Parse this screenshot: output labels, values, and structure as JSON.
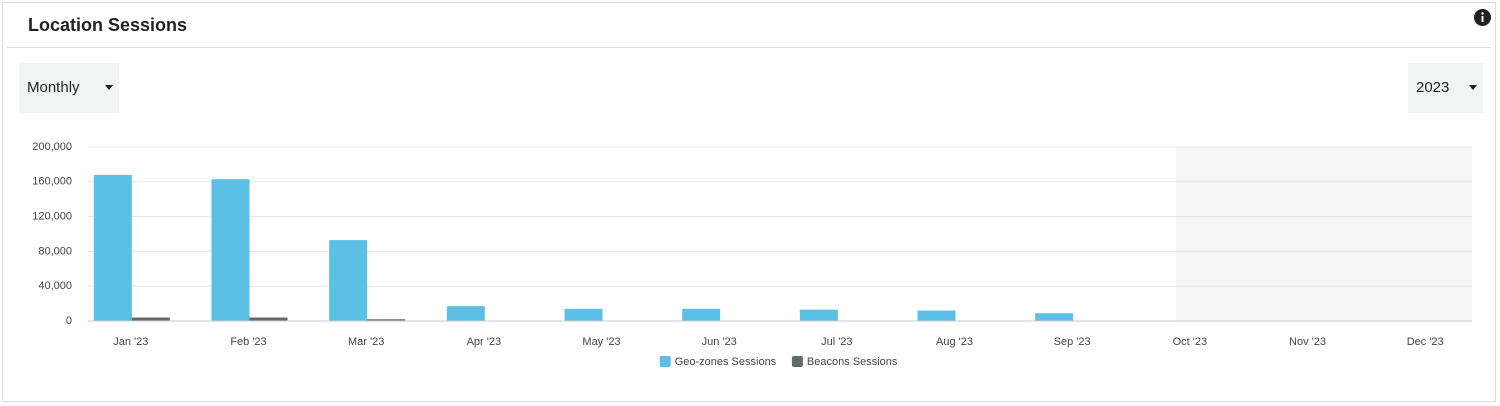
{
  "header": {
    "title": "Location Sessions"
  },
  "controls": {
    "period": "Monthly",
    "year": "2023"
  },
  "chart_data": {
    "type": "bar",
    "categories": [
      "Jan '23",
      "Feb '23",
      "Mar '23",
      "Apr '23",
      "May '23",
      "Jun '23",
      "Jul '23",
      "Aug '23",
      "Sep '23",
      "Oct '23",
      "Nov '23",
      "Dec '23"
    ],
    "series": [
      {
        "name": "Geo-zones Sessions",
        "color": "#5bbfe6",
        "values": [
          168000,
          163000,
          93000,
          17000,
          14000,
          14000,
          13000,
          12000,
          9000,
          null,
          null,
          null
        ]
      },
      {
        "name": "Beacons Sessions",
        "color": "#656a6d",
        "values": [
          4000,
          4000,
          2000,
          500,
          300,
          300,
          200,
          200,
          100,
          null,
          null,
          null
        ]
      }
    ],
    "ylim": [
      0,
      200000
    ],
    "yticks": [
      0,
      {
        "value": 40000,
        "label": "40,000"
      },
      {
        "value": 80000,
        "label": "80,000"
      },
      {
        "value": 120000,
        "label": "120,000"
      },
      {
        "value": 160000,
        "label": "160,000"
      },
      {
        "value": 200000,
        "label": "200,000"
      }
    ],
    "grid": true,
    "legend": "bottom"
  }
}
